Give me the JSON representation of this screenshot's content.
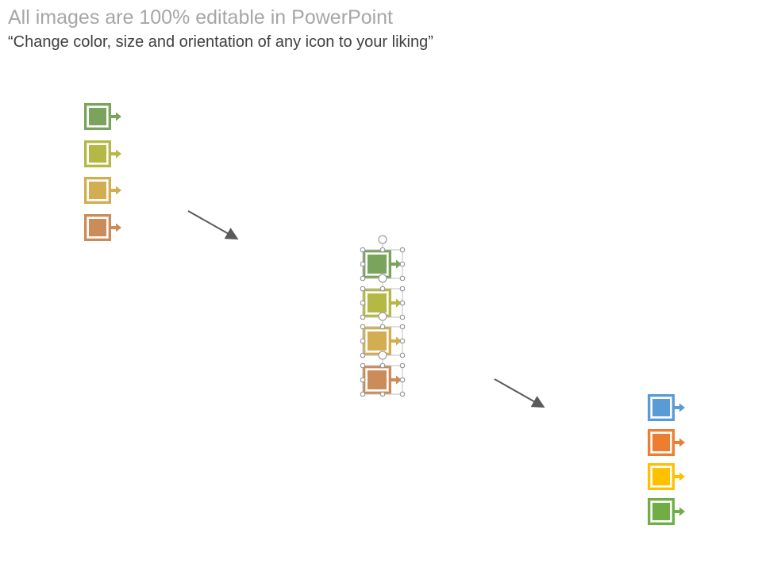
{
  "header": {
    "title": "All images are 100% editable in PowerPoint",
    "subtitle": "“Change color, size and orientation of any icon to your liking”"
  },
  "groups": [
    {
      "name": "original-icons",
      "colors": [
        "#7aa35b",
        "#b5b844",
        "#d2ad52",
        "#cc8c59"
      ]
    },
    {
      "name": "selected-icons",
      "colors": [
        "#7aa35b",
        "#b5b844",
        "#d2ad52",
        "#cc8c59"
      ]
    },
    {
      "name": "recolored-icons",
      "colors": [
        "#5b9bd5",
        "#ed7d31",
        "#ffc000",
        "#70ad47"
      ]
    }
  ],
  "icon_name": "square-arrow-icon",
  "arrow_color": "#595959"
}
